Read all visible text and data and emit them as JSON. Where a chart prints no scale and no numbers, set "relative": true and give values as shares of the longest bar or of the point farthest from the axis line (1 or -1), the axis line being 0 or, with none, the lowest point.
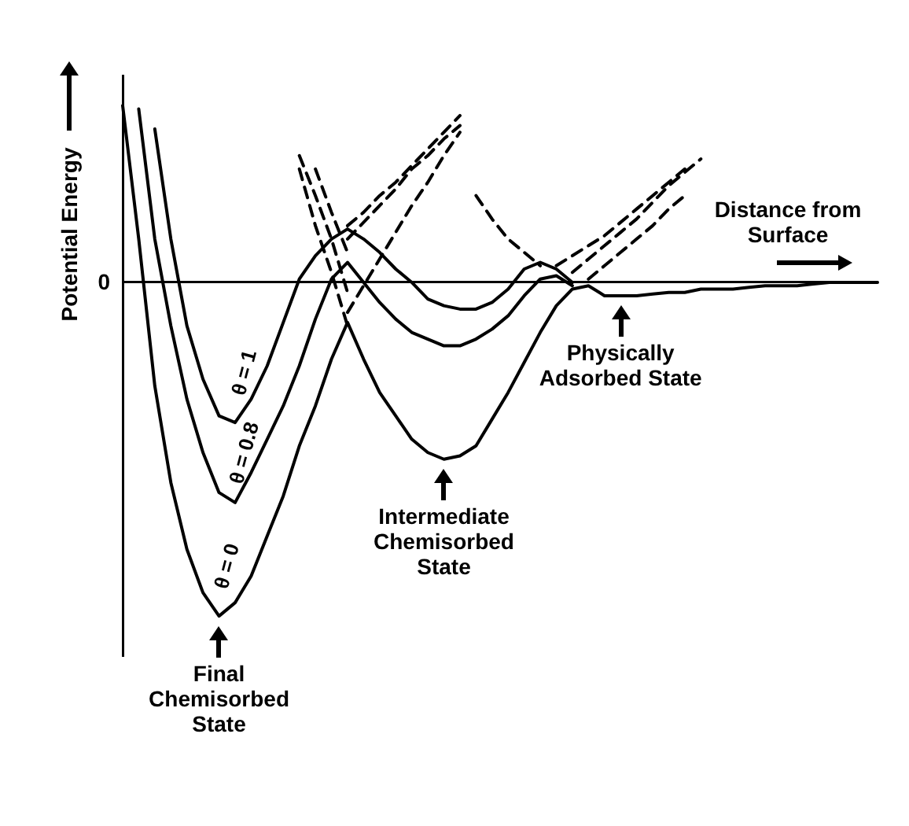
{
  "chart_data": {
    "type": "line",
    "relative": true,
    "ylabel": "Potential Energy",
    "xlabel": "Distance from Surface",
    "legend": false,
    "grid": false,
    "marker": "none",
    "categories": [
      null,
      null,
      null,
      null,
      null,
      null,
      null,
      null,
      null,
      null,
      null,
      null,
      null,
      null,
      null,
      null,
      null,
      null,
      null,
      null,
      null,
      null,
      null,
      null,
      null,
      null,
      null,
      null,
      null,
      null,
      null,
      null,
      null,
      null,
      null,
      null,
      null,
      null,
      null,
      null,
      null,
      null,
      null,
      null,
      null,
      null,
      null,
      null
    ],
    "annotations": [
      "0",
      "Final Chemisorbed State",
      "Intermediate Chemisorbed State",
      "Physically Adsorbed State"
    ],
    "series": [
      {
        "name": "θ = 0",
        "color": "#000000",
        "line_style": "solid",
        "values": [
          0.53,
          0.13,
          -0.31,
          -0.6,
          -0.8,
          -0.93,
          -1,
          -0.96,
          -0.88,
          -0.76,
          -0.64,
          -0.49,
          -0.37,
          -0.23,
          -0.12,
          -0.23,
          -0.33,
          -0.4,
          -0.47,
          -0.51,
          -0.53,
          -0.52,
          -0.49,
          -0.41,
          -0.33,
          -0.24,
          -0.15,
          -0.07,
          -0.02,
          -0.01,
          -0.04,
          -0.04,
          -0.04,
          -0.035,
          -0.03,
          -0.03,
          -0.02,
          -0.02,
          -0.02,
          -0.015,
          -0.01,
          -0.01,
          -0.01,
          -0.005,
          0,
          0,
          0,
          0
        ]
      },
      {
        "name": "θ = 1",
        "color": "#000000",
        "line_style": "solid",
        "values": [
          null,
          null,
          0.46,
          0.13,
          -0.13,
          -0.29,
          -0.4,
          -0.42,
          -0.35,
          -0.25,
          -0.12,
          0.01,
          0.08,
          0.13,
          0.16,
          0.13,
          0.09,
          0.04,
          0,
          -0.05,
          -0.07,
          -0.08,
          -0.08,
          -0.06,
          -0.02,
          0.04,
          0.06,
          0.04,
          0,
          null,
          null,
          null,
          null,
          null,
          null,
          null,
          null,
          null,
          null,
          null,
          null,
          null,
          null,
          null,
          null,
          null,
          null,
          null
        ]
      },
      {
        "name": "θ = 0.8",
        "color": "#000000",
        "line_style": "solid",
        "values": [
          null,
          0.52,
          0.13,
          -0.13,
          -0.35,
          -0.51,
          -0.63,
          -0.66,
          -0.57,
          -0.47,
          -0.37,
          -0.25,
          -0.11,
          0.01,
          0.06,
          0,
          -0.06,
          -0.11,
          -0.15,
          -0.17,
          -0.19,
          -0.19,
          -0.17,
          -0.14,
          -0.1,
          -0.04,
          0.01,
          0.02,
          -0.01,
          null,
          null,
          null,
          null,
          null,
          null,
          null,
          null,
          null,
          null,
          null,
          null,
          null,
          null,
          null,
          null,
          null,
          null,
          null
        ]
      },
      {
        "color": "#000000",
        "line_style": "dashed",
        "values": [
          null,
          null,
          null,
          null,
          null,
          null,
          null,
          null,
          null,
          null,
          null,
          null,
          null,
          null,
          -0.09,
          -0.01,
          0.07,
          0.15,
          0.23,
          0.3,
          0.38,
          0.45,
          null,
          null,
          null,
          null,
          null,
          null,
          null,
          null,
          null,
          null,
          null,
          null,
          null,
          null,
          null,
          null,
          null,
          null,
          null,
          null,
          null,
          null,
          null,
          null,
          null,
          null
        ]
      },
      {
        "color": "#000000",
        "line_style": "dashed",
        "values": [
          null,
          null,
          null,
          null,
          null,
          null,
          null,
          null,
          null,
          null,
          null,
          null,
          null,
          null,
          0.13,
          0.18,
          0.23,
          0.28,
          0.34,
          0.38,
          0.43,
          0.47,
          null,
          null,
          null,
          null,
          null,
          null,
          null,
          null,
          null,
          null,
          null,
          null,
          null,
          null,
          null,
          null,
          null,
          null,
          null,
          null,
          null,
          null,
          null,
          null,
          null,
          null
        ]
      },
      {
        "color": "#000000",
        "line_style": "dashed",
        "values": [
          null,
          null,
          null,
          null,
          null,
          null,
          null,
          null,
          null,
          null,
          null,
          null,
          null,
          null,
          0.17,
          0.21,
          0.26,
          0.3,
          0.35,
          0.4,
          0.45,
          0.5,
          null,
          null,
          null,
          null,
          null,
          null,
          null,
          null,
          null,
          null,
          null,
          null,
          null,
          null,
          null,
          null,
          null,
          null,
          null,
          null,
          null,
          null,
          null,
          null,
          null,
          null
        ]
      },
      {
        "color": "#000000",
        "line_style": "dashed",
        "values": [
          null,
          null,
          null,
          null,
          null,
          null,
          null,
          null,
          null,
          null,
          null,
          0.38,
          0.26,
          0.13,
          -0.03,
          null,
          null,
          null,
          null,
          null,
          null,
          null,
          null,
          null,
          null,
          null,
          null,
          null,
          null,
          null,
          null,
          null,
          null,
          null,
          null,
          null,
          null,
          null,
          null,
          null,
          null,
          null,
          null,
          null,
          null,
          null,
          null,
          null
        ]
      },
      {
        "color": "#000000",
        "line_style": "dashed",
        "values": [
          null,
          null,
          null,
          null,
          null,
          null,
          null,
          null,
          null,
          null,
          null,
          null,
          0.34,
          0.21,
          0.09,
          null,
          null,
          null,
          null,
          null,
          null,
          null,
          null,
          null,
          null,
          null,
          null,
          null,
          null,
          null,
          null,
          null,
          null,
          null,
          null,
          null,
          null,
          null,
          null,
          null,
          null,
          null,
          null,
          null,
          null,
          null,
          null,
          null
        ]
      },
      {
        "color": "#000000",
        "line_style": "dashed",
        "values": [
          null,
          null,
          null,
          null,
          null,
          null,
          null,
          null,
          null,
          null,
          null,
          0.34,
          0.17,
          0.03,
          -0.13,
          null,
          null,
          null,
          null,
          null,
          null,
          null,
          null,
          null,
          null,
          null,
          null,
          null,
          null,
          null,
          null,
          null,
          null,
          null,
          null,
          null,
          null,
          null,
          null,
          null,
          null,
          null,
          null,
          null,
          null,
          null,
          null,
          null
        ]
      },
      {
        "color": "#000000",
        "line_style": "dashed",
        "values": [
          null,
          null,
          null,
          null,
          null,
          null,
          null,
          null,
          null,
          null,
          null,
          null,
          null,
          null,
          null,
          null,
          null,
          null,
          null,
          null,
          null,
          null,
          0.26,
          0.19,
          0.13,
          0.09,
          0.05,
          null,
          null,
          null,
          null,
          null,
          null,
          null,
          null,
          null,
          null,
          null,
          null,
          null,
          null,
          null,
          null,
          null,
          null,
          null,
          null,
          null
        ]
      },
      {
        "color": "#000000",
        "line_style": "dashed",
        "values": [
          null,
          null,
          null,
          null,
          null,
          null,
          null,
          null,
          null,
          null,
          null,
          null,
          null,
          null,
          null,
          null,
          null,
          null,
          null,
          null,
          null,
          null,
          null,
          null,
          null,
          null,
          null,
          0.05,
          0.08,
          0.11,
          0.14,
          0.18,
          0.22,
          0.26,
          0.3,
          0.34,
          null,
          null,
          null,
          null,
          null,
          null,
          null,
          null,
          null,
          null,
          null,
          null
        ]
      },
      {
        "color": "#000000",
        "line_style": "dashed",
        "values": [
          null,
          null,
          null,
          null,
          null,
          null,
          null,
          null,
          null,
          null,
          null,
          null,
          null,
          null,
          null,
          null,
          null,
          null,
          null,
          null,
          null,
          null,
          null,
          null,
          null,
          null,
          null,
          null,
          0.03,
          0.07,
          0.11,
          0.15,
          0.19,
          0.24,
          0.29,
          0.33,
          0.37,
          null,
          null,
          null,
          null,
          null,
          null,
          null,
          null,
          null,
          null,
          null
        ]
      },
      {
        "color": "#000000",
        "line_style": "dashed",
        "values": [
          null,
          null,
          null,
          null,
          null,
          null,
          null,
          null,
          null,
          null,
          null,
          null,
          null,
          null,
          null,
          null,
          null,
          null,
          null,
          null,
          null,
          null,
          null,
          null,
          null,
          null,
          null,
          null,
          null,
          0.01,
          0.05,
          0.09,
          0.13,
          0.17,
          0.22,
          0.26,
          null,
          null,
          null,
          null,
          null,
          null,
          null,
          null,
          null,
          null,
          null,
          null
        ]
      }
    ]
  }
}
